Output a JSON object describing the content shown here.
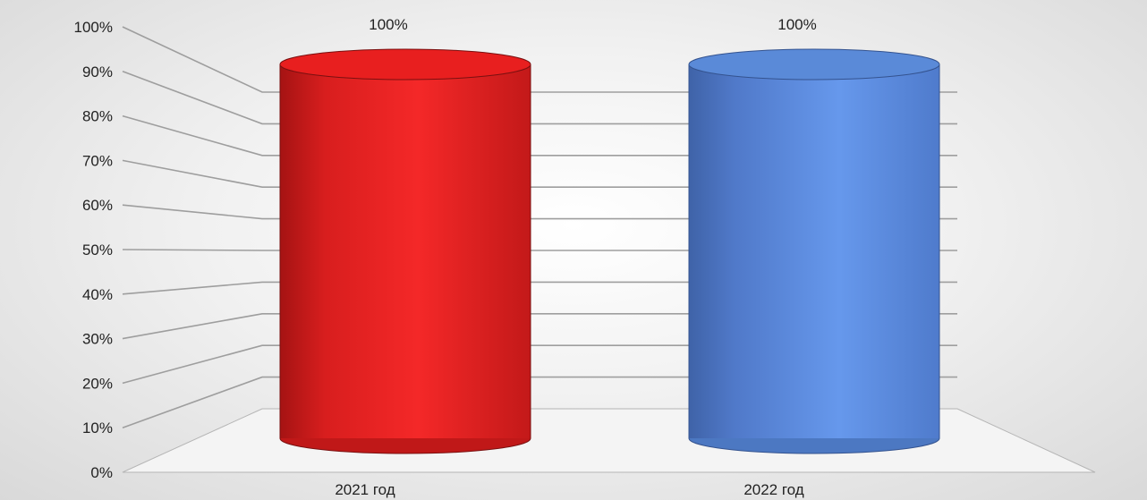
{
  "chart_data": {
    "type": "bar",
    "style": "3d-cylinder",
    "categories": [
      "2021 год",
      "2022 год"
    ],
    "series": [
      {
        "values": [
          1.0,
          1.0
        ],
        "colors": [
          "#e01f1f",
          "#5b8de0"
        ]
      }
    ],
    "data_labels": [
      "100%",
      "100%"
    ],
    "y_ticks": [
      "0%",
      "10%",
      "20%",
      "30%",
      "40%",
      "50%",
      "60%",
      "70%",
      "80%",
      "90%",
      "100%"
    ],
    "ylim": [
      0,
      1
    ],
    "grid": true,
    "legend": "none",
    "title": "",
    "xlabel": "",
    "ylabel": ""
  }
}
